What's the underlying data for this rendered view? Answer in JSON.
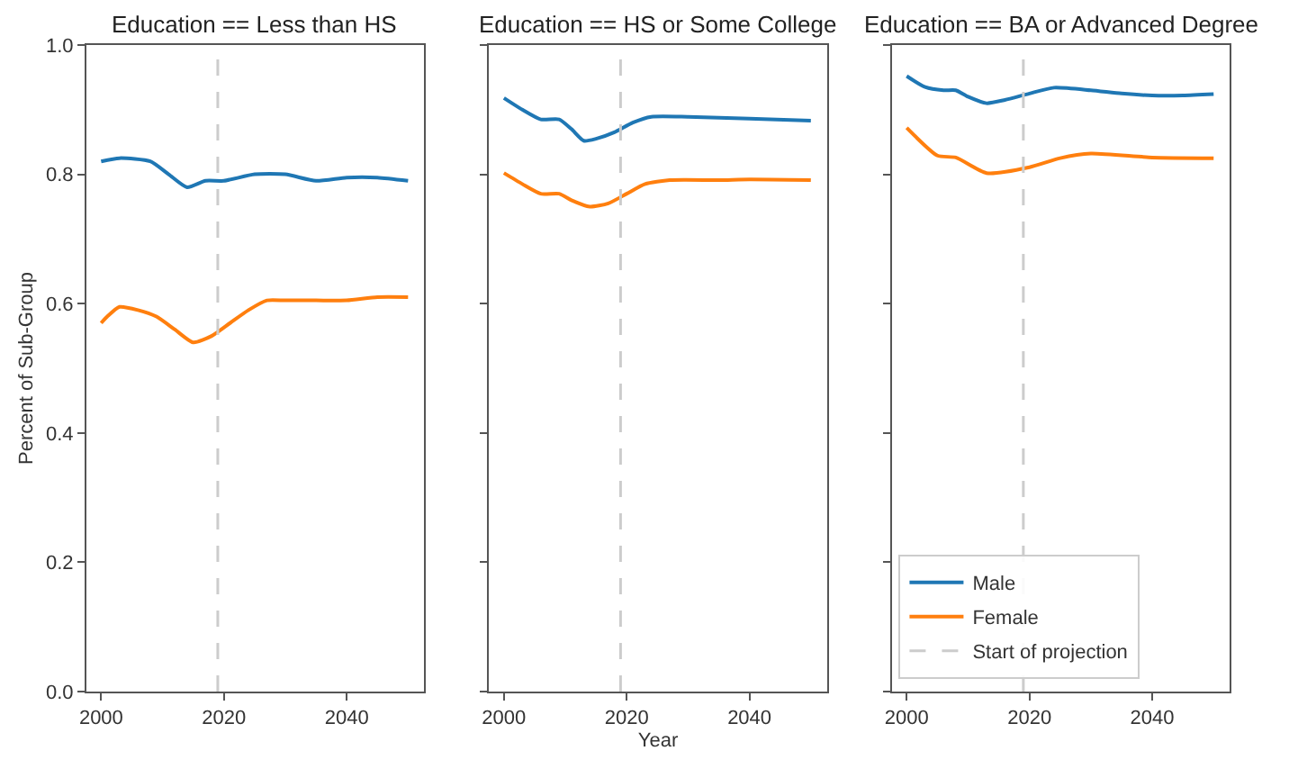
{
  "chart_data": [
    {
      "type": "line",
      "title": "Education == Less than HS",
      "ylabel": "Percent of Sub-Group",
      "xlim": [
        1997.6,
        2052.6
      ],
      "xticks": [
        2000,
        2020,
        2040
      ],
      "ylim": [
        0,
        1
      ],
      "yticks": [
        {
          "value": 0,
          "label": "0.0"
        },
        0.2,
        0.4,
        0.6,
        0.8,
        {
          "value": 1,
          "label": "1.0"
        }
      ],
      "legend": false,
      "series": [
        {
          "color": "#1f77b4",
          "x": [
            2000,
            2003,
            2008,
            2011,
            2014,
            2017,
            2020,
            2025,
            2030,
            2035,
            2040,
            2045,
            2050
          ],
          "values": [
            0.82,
            0.825,
            0.82,
            0.8,
            0.78,
            0.79,
            0.79,
            0.8,
            0.8,
            0.79,
            0.795,
            0.795,
            0.79
          ]
        },
        {
          "color": "#ff7f0e",
          "x": [
            2000,
            2001,
            2003,
            2006,
            2009,
            2012,
            2015,
            2018,
            2021,
            2024,
            2027,
            2030,
            2035,
            2040,
            2045,
            2050
          ],
          "values": [
            0.57,
            0.58,
            0.595,
            0.59,
            0.58,
            0.56,
            0.54,
            0.55,
            0.57,
            0.59,
            0.605,
            0.605,
            0.605,
            0.605,
            0.61,
            0.61
          ]
        }
      ],
      "ref_lines": [
        {
          "axis": "x",
          "value": 2019,
          "color": "#cccccc",
          "line_style": "dashed"
        }
      ]
    },
    {
      "type": "line",
      "title": "Education == HS or Some College",
      "xlabel": "Year",
      "xlim": [
        1997.6,
        2052.6
      ],
      "xticks": [
        2000,
        2020,
        2040
      ],
      "ylim": [
        0,
        1
      ],
      "yticks": [
        {
          "value": 0.0,
          "label": null
        },
        {
          "value": 0.2,
          "label": null
        },
        {
          "value": 0.4,
          "label": null
        },
        {
          "value": 0.6,
          "label": null
        },
        {
          "value": 0.8,
          "label": null
        },
        {
          "value": 1.0,
          "label": null
        }
      ],
      "legend": false,
      "tick_labels": "x",
      "series": [
        {
          "color": "#1f77b4",
          "x": [
            2000,
            2003,
            2006,
            2009,
            2011,
            2013,
            2015,
            2018,
            2021,
            2024,
            2030,
            2040,
            2050
          ],
          "values": [
            0.918,
            0.9,
            0.885,
            0.885,
            0.87,
            0.852,
            0.855,
            0.865,
            0.88,
            0.889,
            0.889,
            0.886,
            0.883
          ]
        },
        {
          "color": "#ff7f0e",
          "x": [
            2000,
            2003,
            2006,
            2009,
            2011,
            2014,
            2017,
            2020,
            2023,
            2027,
            2035,
            2040,
            2050
          ],
          "values": [
            0.802,
            0.785,
            0.77,
            0.77,
            0.76,
            0.75,
            0.755,
            0.77,
            0.785,
            0.791,
            0.791,
            0.792,
            0.791
          ]
        }
      ],
      "ref_lines": [
        {
          "axis": "x",
          "value": 2019,
          "color": "#cccccc",
          "line_style": "dashed"
        }
      ]
    },
    {
      "type": "line",
      "title": "Education == BA or Advanced Degree",
      "xlim": [
        1997.6,
        2052.6
      ],
      "xticks": [
        2000,
        2020,
        2040
      ],
      "ylim": [
        0,
        1
      ],
      "yticks": [
        {
          "value": 0.0,
          "label": null
        },
        {
          "value": 0.2,
          "label": null
        },
        {
          "value": 0.4,
          "label": null
        },
        {
          "value": 0.6,
          "label": null
        },
        {
          "value": 0.8,
          "label": null
        },
        {
          "value": 1.0,
          "label": null
        }
      ],
      "legend": "bottom left",
      "tick_labels": "x",
      "series": [
        {
          "name": "Male",
          "color": "#1f77b4",
          "x": [
            2000,
            2003,
            2006,
            2008,
            2010,
            2013,
            2016,
            2020,
            2024,
            2030,
            2035,
            2040,
            2045,
            2050
          ],
          "values": [
            0.952,
            0.935,
            0.93,
            0.93,
            0.92,
            0.91,
            0.915,
            0.925,
            0.934,
            0.93,
            0.925,
            0.922,
            0.922,
            0.924
          ]
        },
        {
          "name": "Female",
          "color": "#ff7f0e",
          "x": [
            2000,
            2005,
            2008,
            2013,
            2020,
            2025,
            2030,
            2040,
            2050
          ],
          "values": [
            0.872,
            0.829,
            0.826,
            0.802,
            0.811,
            0.825,
            0.832,
            0.826,
            0.825
          ]
        }
      ],
      "ref_lines": [
        {
          "axis": "x",
          "value": 2019,
          "label": "Start of projection",
          "color": "#cccccc",
          "line_style": "dashed"
        }
      ]
    }
  ]
}
